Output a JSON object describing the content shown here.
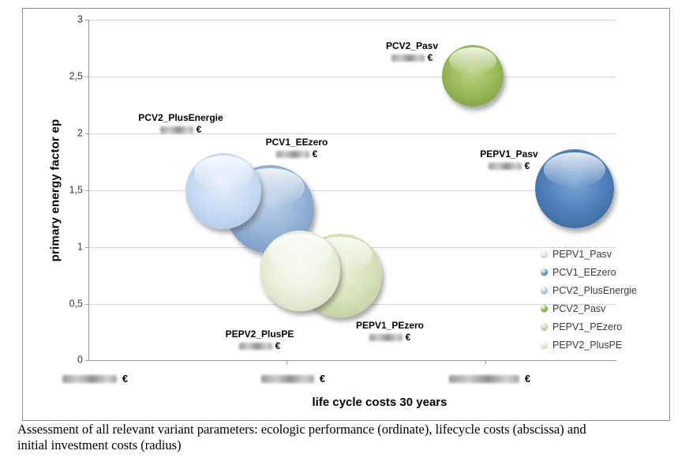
{
  "chart_data": {
    "type": "scatter",
    "subtype": "bubble",
    "title": "",
    "xlabel": "life cycle costs 30 years",
    "ylabel": "primary energy factor ep",
    "ylim": [
      0,
      3
    ],
    "y_tick_labels": [
      "3",
      "2,5",
      "2",
      "1,5",
      "1",
      "0,5",
      "0"
    ],
    "grid": "horizontal gridlines on",
    "legend_position": "right, inside plot, no background",
    "currency_symbol": "€",
    "values_note": "all euro amounts (bubble values and x-axis labels) are blurred/redacted in the source image; bubble radius encodes initial investment costs",
    "series": [
      {
        "name": "PEPV1_Pasv",
        "ep": 1.5,
        "cost_value": "redacted €",
        "color": "#4F81BD",
        "color_light": "#7FA6D2",
        "color_dark": "#38618F"
      },
      {
        "name": "PCV1_EEzero",
        "ep": 1.35,
        "cost_value": "redacted €",
        "color": "#95B3D7",
        "color_light": "#BDD2EA",
        "color_dark": "#6E90BA"
      },
      {
        "name": "PCV2_PlusEnergie",
        "ep": 1.5,
        "cost_value": "redacted €",
        "color": "#C9DCF4",
        "color_light": "#E6EFFB",
        "color_dark": "#A6C2E3"
      },
      {
        "name": "PCV2_Pasv",
        "ep": 2.5,
        "cost_value": "redacted €",
        "color": "#9BBB59",
        "color_light": "#BCD489",
        "color_dark": "#78953F"
      },
      {
        "name": "PEPV1_PEzero",
        "ep": 0.75,
        "cost_value": "redacted €",
        "color": "#D7E4BC",
        "color_light": "#EAF1D9",
        "color_dark": "#B4C78C"
      },
      {
        "name": "PEPV2_PlusPE",
        "ep": 0.8,
        "cost_value": "redacted €",
        "color": "#EBF1DE",
        "color_light": "#F8FBF3",
        "color_dark": "#CBDAAE"
      }
    ],
    "x_axis_redacted_labels": [
      {
        "currency": "€"
      },
      {
        "currency": "€"
      },
      {
        "currency": "€"
      }
    ]
  },
  "legend": {
    "items": [
      {
        "label": "PEPV1_Pasv",
        "color": "#D8E2EE",
        "color_dark": "#9FB4CC"
      },
      {
        "label": "PCV1_EEzero",
        "color": "#5C8AC4",
        "color_dark": "#3D6596"
      },
      {
        "label": "PCV2_PlusEnergie",
        "color": "#A9C3E4",
        "color_dark": "#7FA0C8"
      },
      {
        "label": "PCV2_Pasv",
        "color": "#84AC3E",
        "color_dark": "#5E7E2A"
      },
      {
        "label": "PEPV1_PEzero",
        "color": "#C3D494",
        "color_dark": "#9DB36A"
      },
      {
        "label": "PEPV2_PlusPE",
        "color": "#E0EACB",
        "color_dark": "#BACB9A"
      }
    ]
  },
  "caption": {
    "line1": "Assessment of all relevant variant parameters: ecologic performance (ordinate), lifecycle costs (abscissa) and",
    "line2": "initial investment costs (radius)"
  }
}
